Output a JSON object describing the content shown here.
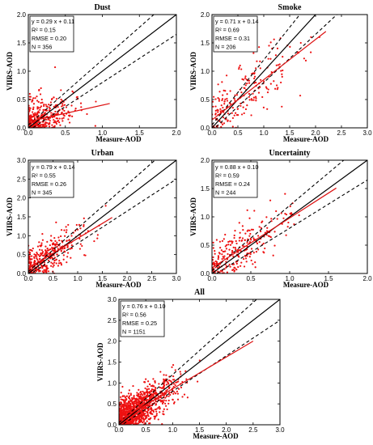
{
  "chart_data": [
    {
      "type": "scatter",
      "title": "Dust",
      "xlabel": "Measure-AOD",
      "ylabel": "VIIRS-AOD",
      "xlim": [
        0,
        2
      ],
      "ylim": [
        0,
        2
      ],
      "xticks": [
        "0.0",
        "0.5",
        "1.0",
        "1.5",
        "2.0"
      ],
      "yticks": [
        "0.0",
        "0.5",
        "1.0",
        "1.5",
        "2.0"
      ],
      "stats": [
        "y = 0.29 x + 0.11",
        "R² = 0.15",
        "RMSE = 0.20",
        "N = 356"
      ],
      "fit": {
        "slope": 0.29,
        "intercept": 0.11,
        "x_range": [
          0.0,
          1.1
        ]
      },
      "envelope": {
        "a": 0.05,
        "b": 0.15
      },
      "n": 356,
      "dist": {
        "mean": 0.25,
        "sd": 0.22,
        "xmax": 1.15
      }
    },
    {
      "type": "scatter",
      "title": "Smoke",
      "xlabel": "Measure-AOD",
      "ylabel": "VIIRS-AOD",
      "xlim": [
        0,
        3
      ],
      "ylim": [
        0,
        2
      ],
      "xticks": [
        "0.0",
        "0.5",
        "1.0",
        "1.5",
        "2.0",
        "2.5",
        "3.0"
      ],
      "yticks": [
        "0.0",
        "0.5",
        "1.0",
        "1.5",
        "2.0"
      ],
      "stats": [
        "y = 0.71 x + 0.14",
        "R² = 0.69",
        "RMSE = 0.31",
        "N = 206"
      ],
      "fit": {
        "slope": 0.71,
        "intercept": 0.14,
        "x_range": [
          0.0,
          2.2
        ]
      },
      "envelope": {
        "a": 0.05,
        "b": 0.15
      },
      "n": 206,
      "dist": {
        "mean": 0.8,
        "sd": 0.5,
        "xmax": 2.5
      }
    },
    {
      "type": "scatter",
      "title": "Urban",
      "xlabel": "Measure-AOD",
      "ylabel": "VIIRS-AOD",
      "xlim": [
        0,
        3
      ],
      "ylim": [
        0,
        3
      ],
      "xticks": [
        "0.0",
        "0.5",
        "1.0",
        "1.5",
        "2.0",
        "2.5",
        "3.0"
      ],
      "yticks": [
        "0.0",
        "0.5",
        "1.0",
        "1.5",
        "2.0",
        "2.5",
        "3.0"
      ],
      "stats": [
        "y = 0.79 x + 0.14",
        "R² = 0.55",
        "RMSE = 0.26",
        "N = 345"
      ],
      "fit": {
        "slope": 0.79,
        "intercept": 0.14,
        "x_range": [
          0.0,
          1.7
        ]
      },
      "envelope": {
        "a": 0.05,
        "b": 0.15
      },
      "n": 345,
      "dist": {
        "mean": 0.55,
        "sd": 0.35,
        "xmax": 1.7
      }
    },
    {
      "type": "scatter",
      "title": "Uncertainty",
      "xlabel": "Measure-AOD",
      "ylabel": "VIIRS-AOD",
      "xlim": [
        0,
        2
      ],
      "ylim": [
        0,
        2
      ],
      "xticks": [
        "0.0",
        "0.5",
        "1.0",
        "1.5",
        "2.0"
      ],
      "yticks": [
        "0.0",
        "0.5",
        "1.0",
        "1.5",
        "2.0"
      ],
      "stats": [
        "y = 0.88 x + 0.10",
        "R² = 0.59",
        "RMSE = 0.24",
        "N = 244"
      ],
      "fit": {
        "slope": 0.88,
        "intercept": 0.1,
        "x_range": [
          0.0,
          1.6
        ]
      },
      "envelope": {
        "a": 0.05,
        "b": 0.15
      },
      "n": 244,
      "dist": {
        "mean": 0.5,
        "sd": 0.3,
        "xmax": 1.6
      }
    },
    {
      "type": "scatter",
      "title": "All",
      "xlabel": "Measure-AOD",
      "ylabel": "VIIRS-AOD",
      "xlim": [
        0,
        3
      ],
      "ylim": [
        0,
        3
      ],
      "xticks": [
        "0.0",
        "0.5",
        "1.0",
        "1.5",
        "2.0",
        "2.5",
        "3.0"
      ],
      "yticks": [
        "0.0",
        "0.5",
        "1.0",
        "1.5",
        "2.0",
        "2.5",
        "3.0"
      ],
      "stats": [
        "y = 0.76 x + 0.10",
        "R² = 0.56",
        "RMSE = 0.25",
        "N = 1151"
      ],
      "fit": {
        "slope": 0.76,
        "intercept": 0.1,
        "x_range": [
          0.0,
          2.5
        ]
      },
      "envelope": {
        "a": 0.05,
        "b": 0.15
      },
      "n": 1151,
      "dist": {
        "mean": 0.45,
        "sd": 0.35,
        "xmax": 2.5
      }
    }
  ],
  "colors": {
    "points": "#ee1111",
    "fit": "#dd1111",
    "line": "#000000"
  }
}
